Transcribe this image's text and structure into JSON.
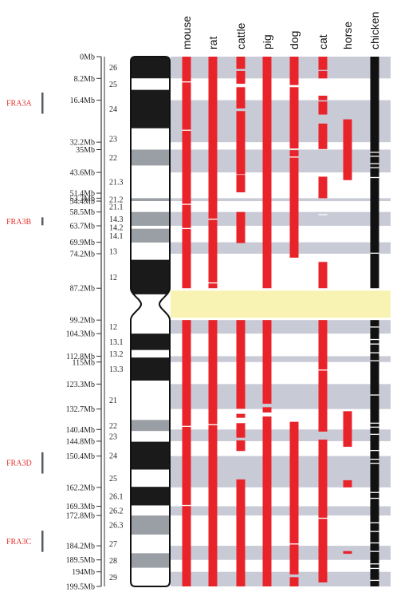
{
  "species": [
    "mouse",
    "rat",
    "cattle",
    "pig",
    "dog",
    "cat",
    "horse",
    "chicken"
  ],
  "mb_ticks": [
    {
      "label": "0Mb",
      "mb": 0
    },
    {
      "label": "8.2Mb",
      "mb": 8.2
    },
    {
      "label": "16.4Mb",
      "mb": 16.4
    },
    {
      "label": "32.2Mb",
      "mb": 32.2
    },
    {
      "label": "35Mb",
      "mb": 35
    },
    {
      "label": "43.6Mb",
      "mb": 43.6
    },
    {
      "label": "51.4Mb",
      "mb": 51.4
    },
    {
      "label": "53.3Mb",
      "mb": 53.3
    },
    {
      "label": "54.4Mb",
      "mb": 54.4
    },
    {
      "label": "58.5Mb",
      "mb": 58.5
    },
    {
      "label": "63.7Mb",
      "mb": 63.7
    },
    {
      "label": "69.9Mb",
      "mb": 69.9
    },
    {
      "label": "74.2Mb",
      "mb": 74.2
    },
    {
      "label": "87.2Mb",
      "mb": 87.2
    },
    {
      "label": "99.2Mb",
      "mb": 99.2
    },
    {
      "label": "104.3Mb",
      "mb": 104.3
    },
    {
      "label": "112.8Mb",
      "mb": 112.8
    },
    {
      "label": "115Mb",
      "mb": 115
    },
    {
      "label": "123.3Mb",
      "mb": 123.3
    },
    {
      "label": "132.7Mb",
      "mb": 132.7
    },
    {
      "label": "140.4Mb",
      "mb": 140.4
    },
    {
      "label": "144.8Mb",
      "mb": 144.8
    },
    {
      "label": "150.4Mb",
      "mb": 150.4
    },
    {
      "label": "162.2Mb",
      "mb": 162.2
    },
    {
      "label": "169.3Mb",
      "mb": 169.3
    },
    {
      "label": "172.8Mb",
      "mb": 172.8
    },
    {
      "label": "184.2Mb",
      "mb": 184.2
    },
    {
      "label": "189.5Mb",
      "mb": 189.5
    },
    {
      "label": "194Mb",
      "mb": 194
    },
    {
      "label": "199.5Mb",
      "mb": 199.5
    }
  ],
  "bands": [
    {
      "label": "26",
      "start": 0,
      "end": 8.2,
      "stain": "black"
    },
    {
      "label": "25",
      "start": 8.2,
      "end": 12.5,
      "stain": "white"
    },
    {
      "label": "24",
      "start": 12.5,
      "end": 27,
      "stain": "black"
    },
    {
      "label": "23",
      "start": 27,
      "end": 35,
      "stain": "white"
    },
    {
      "label": "22",
      "start": 35,
      "end": 41,
      "stain": "grey"
    },
    {
      "label": "21.3",
      "start": 41,
      "end": 53.3,
      "stain": "white"
    },
    {
      "label": "21.2",
      "start": 53.3,
      "end": 54.4,
      "stain": "grey"
    },
    {
      "label": "21.1",
      "start": 54.4,
      "end": 58.5,
      "stain": "white"
    },
    {
      "label": "14.3",
      "start": 58.5,
      "end": 63.7,
      "stain": "grey"
    },
    {
      "label": "14.2",
      "start": 63.7,
      "end": 64.8,
      "stain": "white"
    },
    {
      "label": "14.1",
      "start": 64.8,
      "end": 70,
      "stain": "grey"
    },
    {
      "label": "13",
      "start": 70,
      "end": 76.5,
      "stain": "white"
    },
    {
      "label": "12",
      "start": 76.5,
      "end": 89.5,
      "stain": "black"
    },
    {
      "label": "12",
      "start": 99.2,
      "end": 104.3,
      "stain": "white"
    },
    {
      "label": "13.1",
      "start": 104.3,
      "end": 110.5,
      "stain": "black"
    },
    {
      "label": "13.2",
      "start": 110.5,
      "end": 113.3,
      "stain": "white"
    },
    {
      "label": "13.3",
      "start": 113.3,
      "end": 122,
      "stain": "black"
    },
    {
      "label": "21",
      "start": 122,
      "end": 136.8,
      "stain": "white"
    },
    {
      "label": "22",
      "start": 136.8,
      "end": 141,
      "stain": "grey"
    },
    {
      "label": "23",
      "start": 141,
      "end": 145,
      "stain": "white"
    },
    {
      "label": "24",
      "start": 145,
      "end": 155.5,
      "stain": "black"
    },
    {
      "label": "25",
      "start": 155.5,
      "end": 162,
      "stain": "white"
    },
    {
      "label": "26.1",
      "start": 162,
      "end": 169,
      "stain": "black"
    },
    {
      "label": "26.2",
      "start": 169,
      "end": 172.8,
      "stain": "white"
    },
    {
      "label": "26.3",
      "start": 172.8,
      "end": 180,
      "stain": "grey"
    },
    {
      "label": "27",
      "start": 180,
      "end": 187,
      "stain": "white"
    },
    {
      "label": "28",
      "start": 187,
      "end": 192.5,
      "stain": "grey"
    },
    {
      "label": "29",
      "start": 192.5,
      "end": 199.5,
      "stain": "white"
    }
  ],
  "centromere": {
    "start": 87.2,
    "end": 99.2
  },
  "fragile_sites": [
    {
      "label": "FRA3A",
      "start": 13.5,
      "end": 21.5
    },
    {
      "label": "FRA3B",
      "start": 60.5,
      "end": 63.5
    },
    {
      "label": "FRA3D",
      "start": 149,
      "end": 157
    },
    {
      "label": "FRA3C",
      "start": 178.5,
      "end": 186.5
    }
  ],
  "grey_stripes": [
    [
      0,
      8.2
    ],
    [
      16.4,
      32.2
    ],
    [
      35,
      43.6
    ],
    [
      53.3,
      54.4
    ],
    [
      58.5,
      63.7
    ],
    [
      69.9,
      74.2
    ],
    [
      99.2,
      104.3
    ],
    [
      112.8,
      115
    ],
    [
      123.3,
      132.7
    ],
    [
      140.4,
      144.8
    ],
    [
      150.4,
      162.2
    ],
    [
      169.3,
      172.8
    ],
    [
      184.2,
      189.5
    ],
    [
      194,
      199.5
    ]
  ],
  "species_segments": {
    "mouse": [
      [
        0,
        87.2
      ],
      [
        99.2,
        199.5
      ]
    ],
    "rat": [
      [
        0,
        87.2
      ],
      [
        99.2,
        199.5
      ]
    ],
    "cattle": [
      [
        0,
        4.6
      ],
      [
        5.4,
        10.2
      ],
      [
        11.5,
        19.5
      ],
      [
        20.5,
        44.3
      ],
      [
        44.5,
        51.1
      ],
      [
        58.5,
        70.2
      ],
      [
        99.2,
        132.6
      ],
      [
        134.5,
        136
      ],
      [
        138,
        143.5
      ],
      [
        144.5,
        148.5
      ],
      [
        159.2,
        199.5
      ]
    ],
    "pig": [
      [
        0,
        87.2
      ],
      [
        99.2,
        130.7
      ],
      [
        132,
        134
      ],
      [
        135.5,
        199.5
      ]
    ],
    "dog": [
      [
        0,
        10.7
      ],
      [
        11.5,
        34.6
      ],
      [
        35.2,
        75.7
      ],
      [
        137.5,
        195
      ],
      [
        196,
        199.5
      ]
    ],
    "cat": [
      [
        0,
        5
      ],
      [
        5.4,
        8.2
      ],
      [
        14.7,
        16.4
      ],
      [
        16.9,
        21.8
      ],
      [
        25.2,
        34.8
      ],
      [
        45.2,
        53.3
      ],
      [
        77.3,
        87.2
      ],
      [
        99.2,
        141.2
      ],
      [
        144.2,
        198
      ]
    ],
    "horse": [
      [
        23.6,
        46.5
      ],
      [
        133.5,
        146.9
      ],
      [
        159.5,
        162.2
      ],
      [
        186.2,
        187.2
      ]
    ],
    "chicken": [
      [
        0,
        87.2
      ],
      [
        99.2,
        199.5
      ]
    ]
  },
  "white_ticks": {
    "mouse": [
      9.5,
      27.7,
      55.6,
      64.7,
      139.2,
      169
    ],
    "rat": [
      61.2,
      85.2,
      138.6
    ],
    "cattle": [],
    "pig": [],
    "dog": [
      37.8,
      76,
      183.5
    ],
    "cat": [
      59.5,
      118,
      173.8
    ],
    "horse": [],
    "chicken": [
      36,
      37.5,
      40.3,
      41.8,
      45.5,
      74,
      101.8,
      106.5,
      108.2,
      111.5,
      114.5,
      127.4,
      138,
      139.5,
      142.2,
      148.3,
      151.6,
      153.1,
      164.1,
      166.3,
      175.5,
      178.8,
      183.1,
      186.3,
      191,
      192.7,
      197.2
    ]
  },
  "colors": {
    "segment": "#e8242a",
    "chicken": "#111111",
    "grey_stripe": "#c8cad6",
    "centromere_fill": "#f8f3b2",
    "band_black": "#1a1a1a",
    "band_grey": "#9a9ea5",
    "band_white": "#ffffff",
    "fra_text": "#e0322f",
    "fra_bar": "#555c63"
  }
}
